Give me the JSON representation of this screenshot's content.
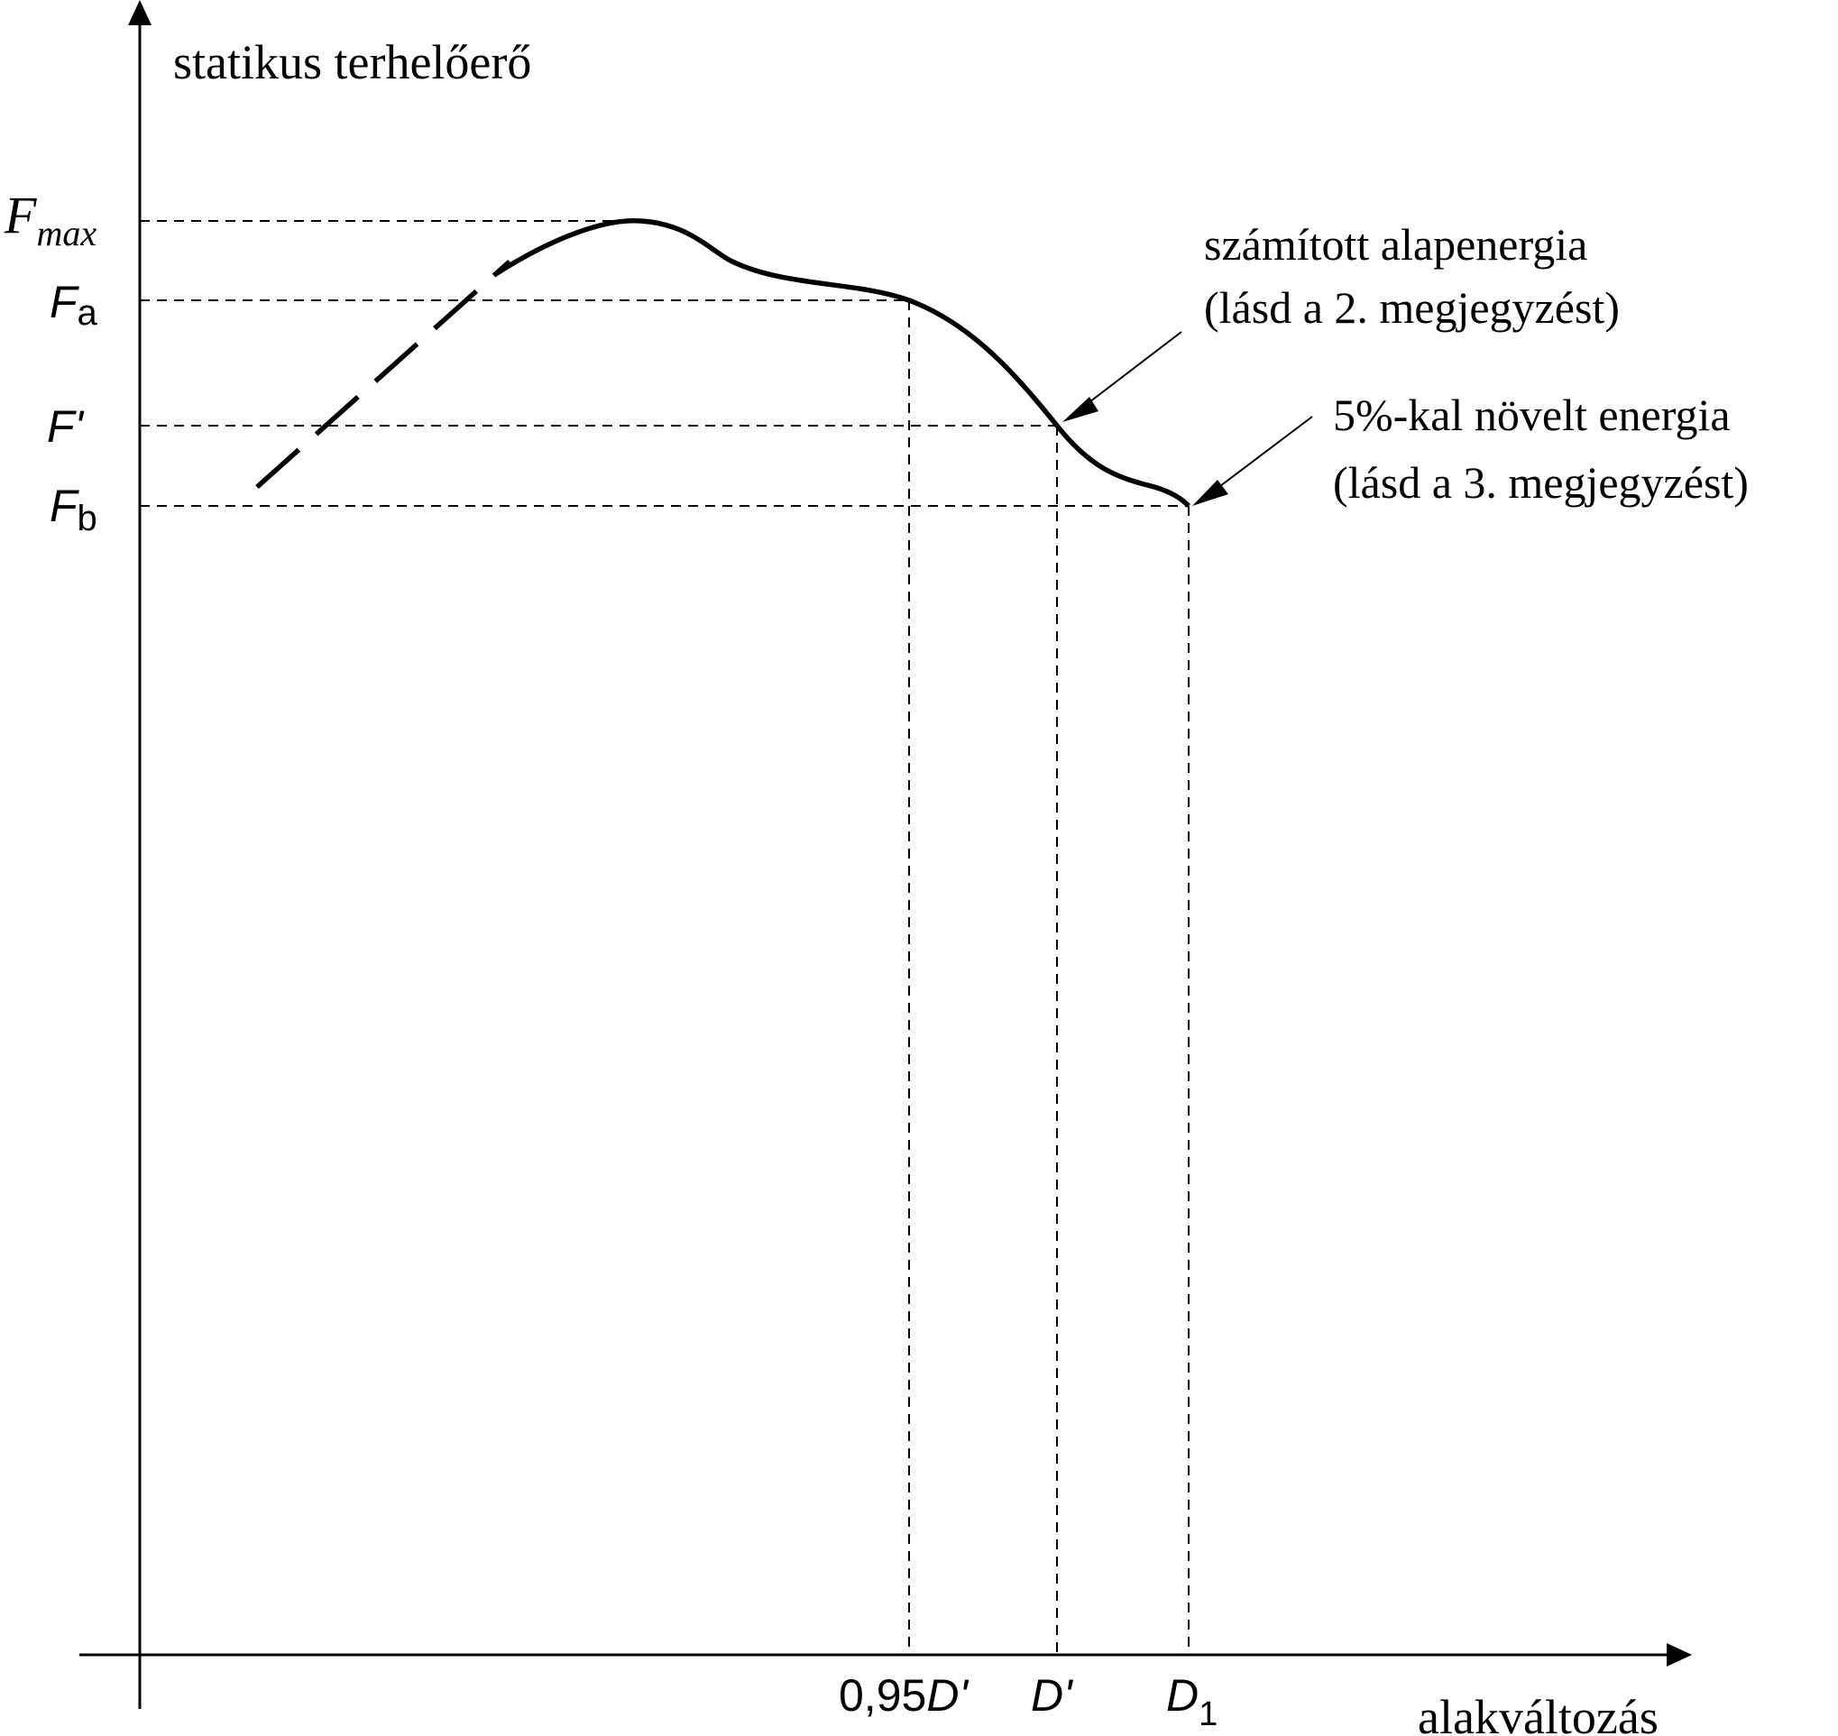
{
  "axes": {
    "y_label": "statikus terhelőerő",
    "x_label": "alakváltozás"
  },
  "y_ticks": {
    "fmax_main": "F",
    "fmax_sub": "max",
    "fa_main": "F",
    "fa_sub": "a",
    "fprime": "F'",
    "fb_main": "F",
    "fb_sub": "b"
  },
  "x_ticks": {
    "d095_num": "0,95",
    "d095_var": "D'",
    "dprime": "D'",
    "d1_main": "D",
    "d1_sub": "1"
  },
  "annotations": {
    "calculated_line1": "számított alapenergia",
    "calculated_line2": "(lásd a 2. megjegyzést)",
    "increased_line1": "5%-kal növelt energia",
    "increased_line2": "(lásd a 3. megjegyzést)"
  }
}
